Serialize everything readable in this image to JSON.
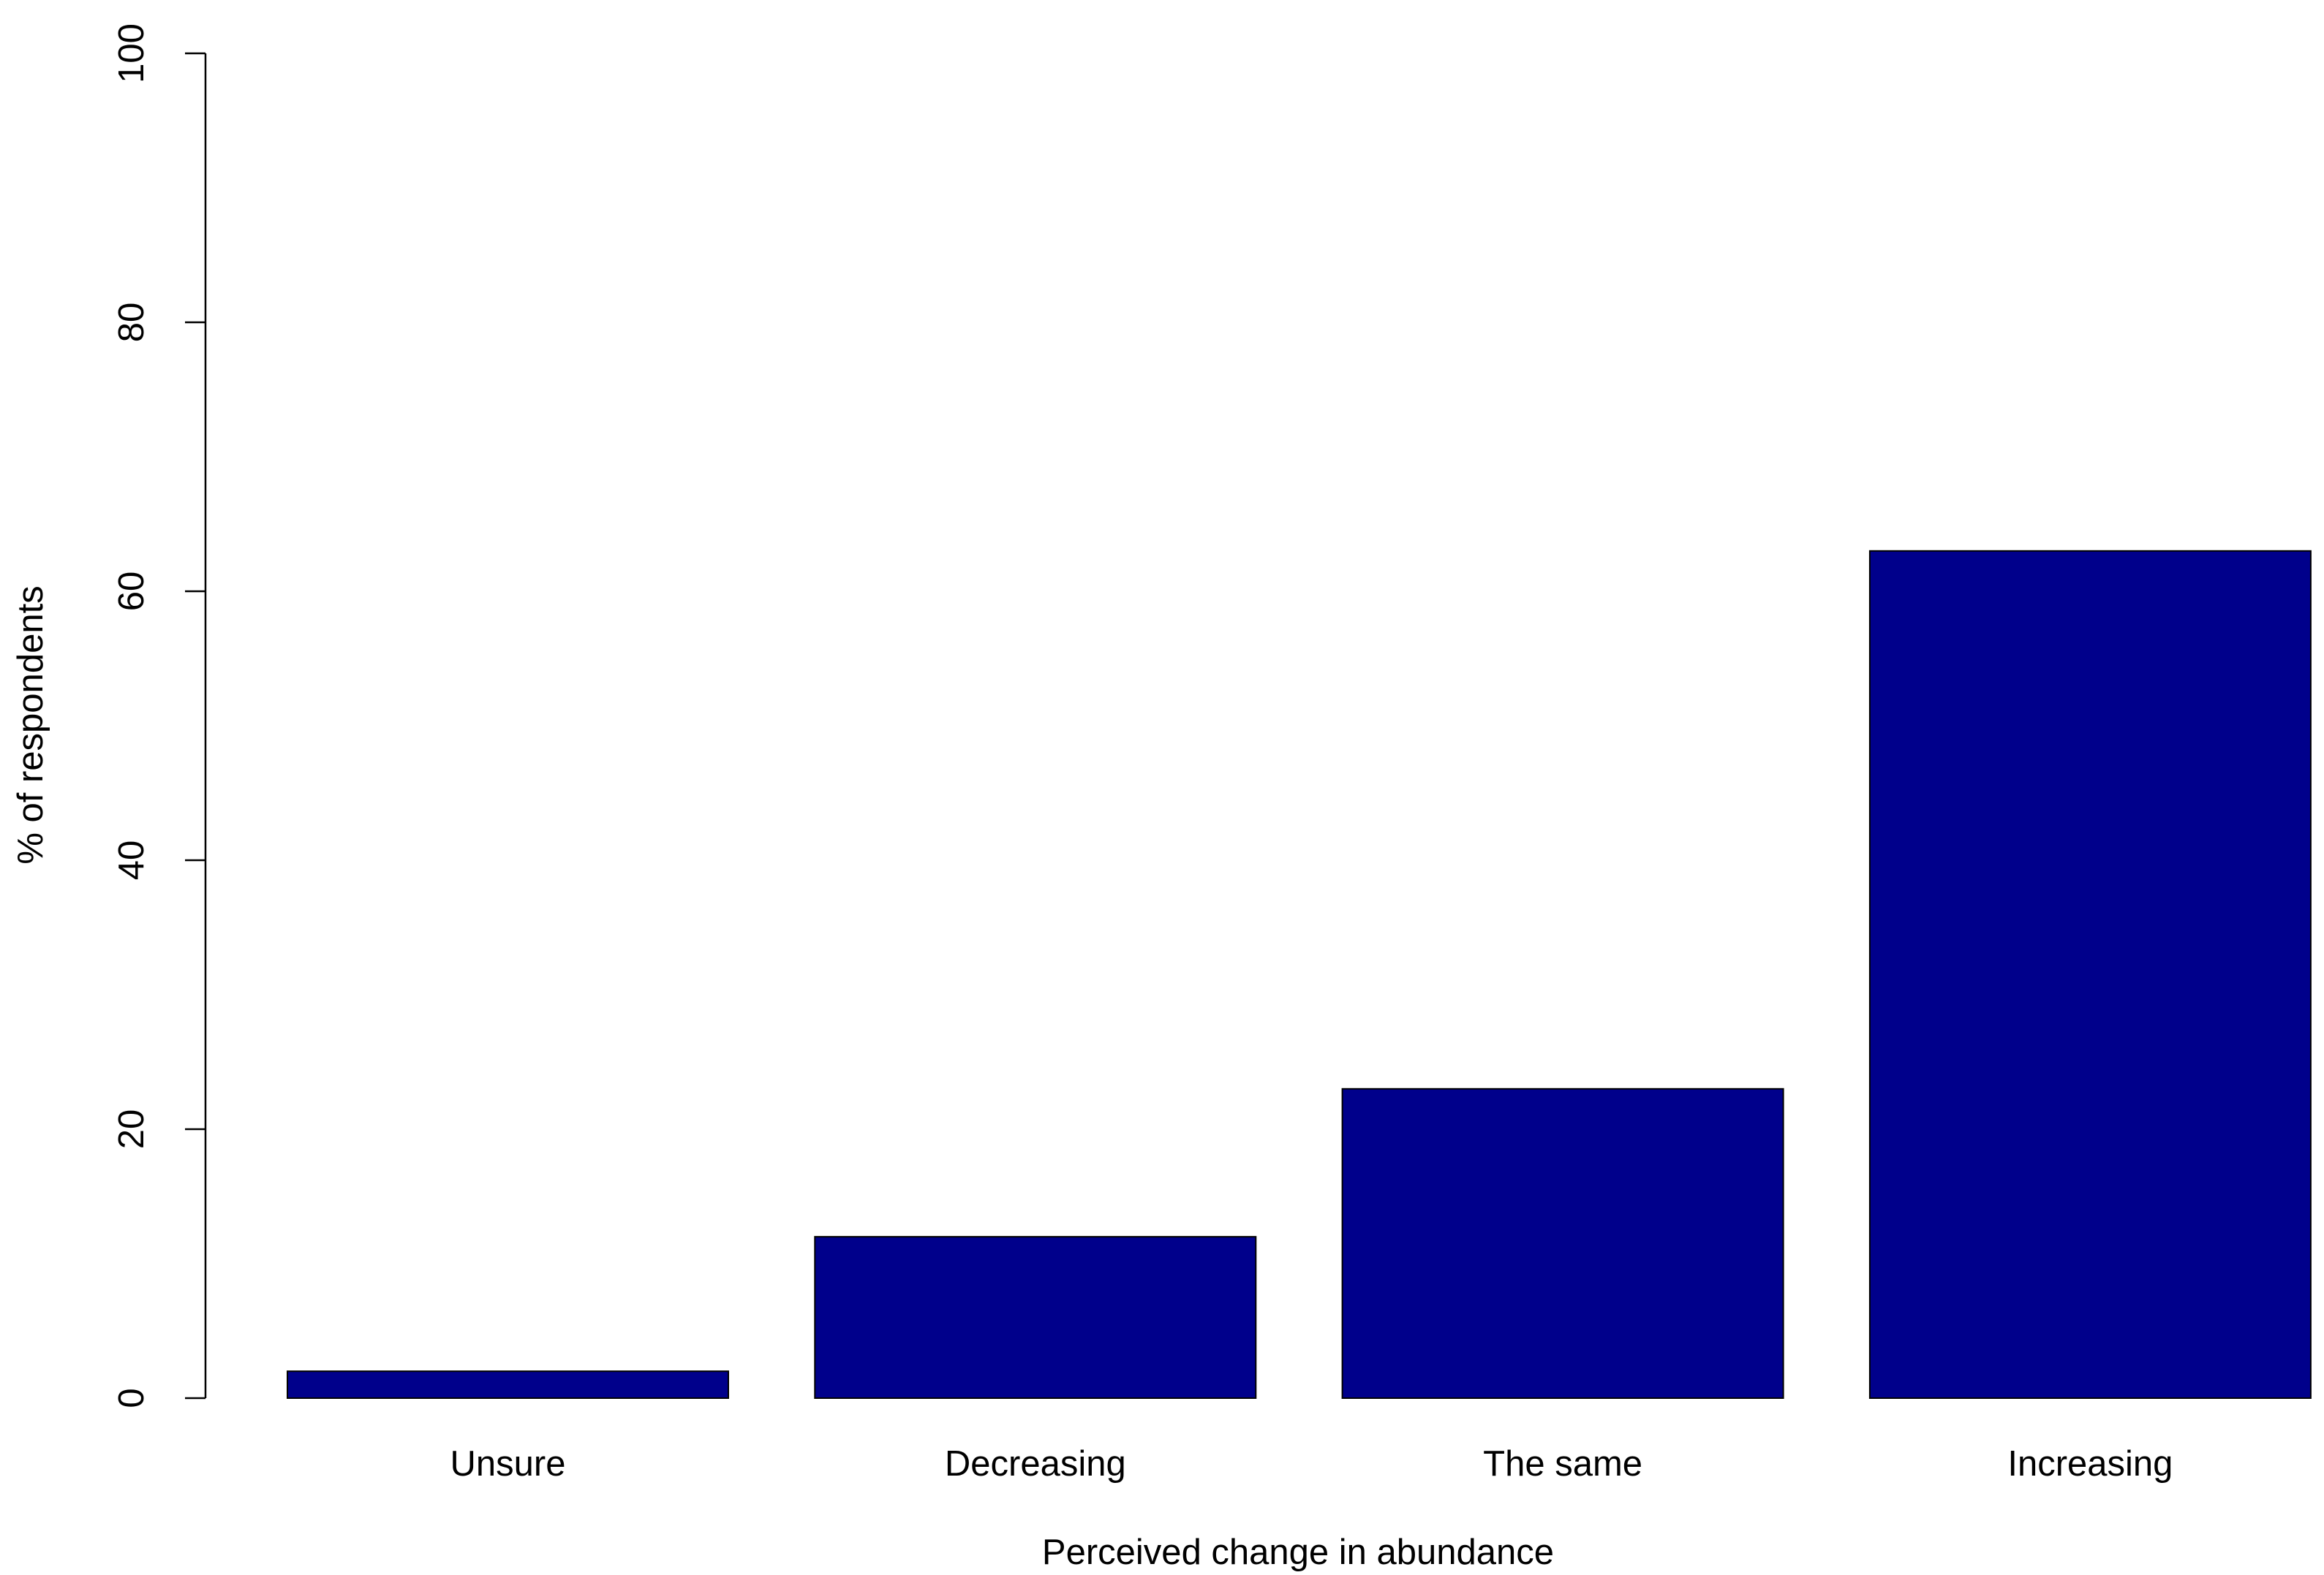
{
  "chart_data": {
    "type": "bar",
    "categories": [
      "Unsure",
      "Decreasing",
      "The same",
      "Increasing"
    ],
    "values": [
      2,
      12,
      23,
      63
    ],
    "color": "#00008b",
    "x_label": "Perceived change in abundance",
    "y_label": "% of respondents",
    "ylim": [
      0,
      100
    ],
    "yticks": [
      0,
      20,
      40,
      60,
      80,
      100
    ],
    "grid": false
  }
}
